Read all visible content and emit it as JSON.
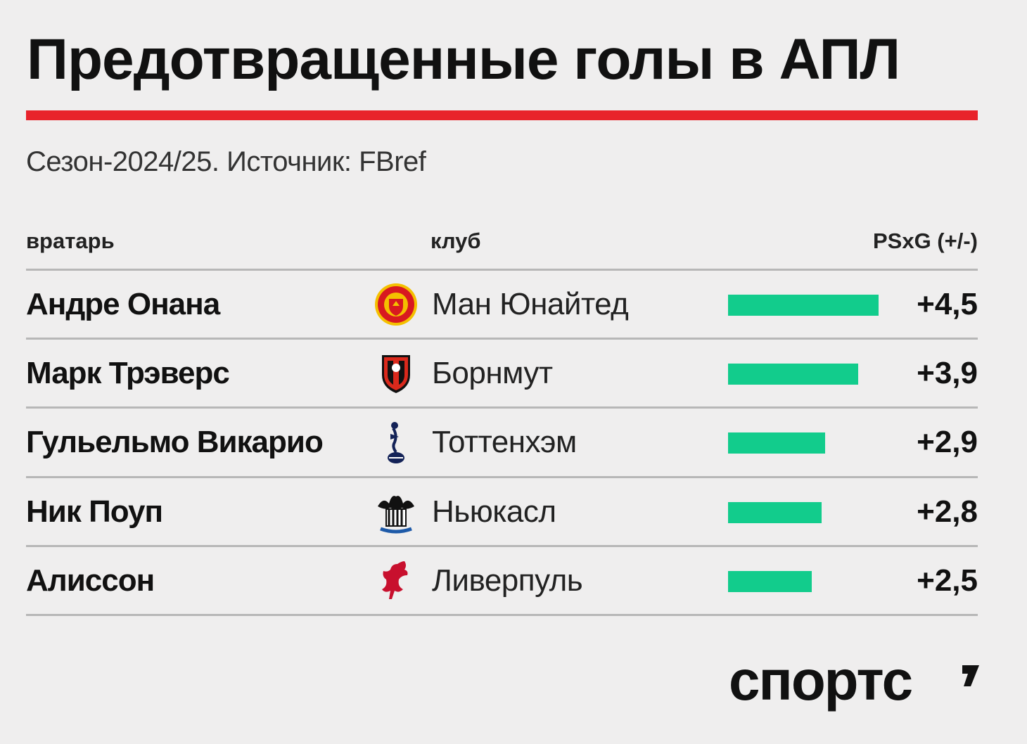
{
  "title": "Предотвращенные голы в АПЛ",
  "subtitle": "Сезон-2024/25. Источник: FBref",
  "headers": {
    "goalkeeper": "вратарь",
    "club": "клуб",
    "metric": "PSxG (+/-)"
  },
  "brand": "спортс",
  "colors": {
    "accent": "#e8232b",
    "bar": "#12cc8c",
    "text": "#111111",
    "background": "#efeeee"
  },
  "chart_data": {
    "type": "bar",
    "orientation": "horizontal",
    "title": "Предотвращенные голы в АПЛ",
    "subtitle": "Сезон-2024/25. Источник: FBref",
    "categories": [
      "Андре Онана",
      "Марк Трэверс",
      "Гульельмо Викарио",
      "Ник Поуп",
      "Алиссон"
    ],
    "clubs": [
      "Ман Юнайтед",
      "Борнмут",
      "Тоттенхэм",
      "Ньюкасл",
      "Ливерпуль"
    ],
    "crest_icons": [
      "man-united-crest-icon",
      "bournemouth-crest-icon",
      "tottenham-crest-icon",
      "newcastle-crest-icon",
      "liverpool-crest-icon"
    ],
    "values": [
      4.5,
      3.9,
      2.9,
      2.8,
      2.5
    ],
    "labels": [
      "+4,5",
      "+3,9",
      "+2,9",
      "+2,8",
      "+2,5"
    ],
    "value_label": "PSxG (+/-)",
    "xlim": [
      0,
      4.5
    ],
    "grid": false,
    "legend": "none"
  }
}
